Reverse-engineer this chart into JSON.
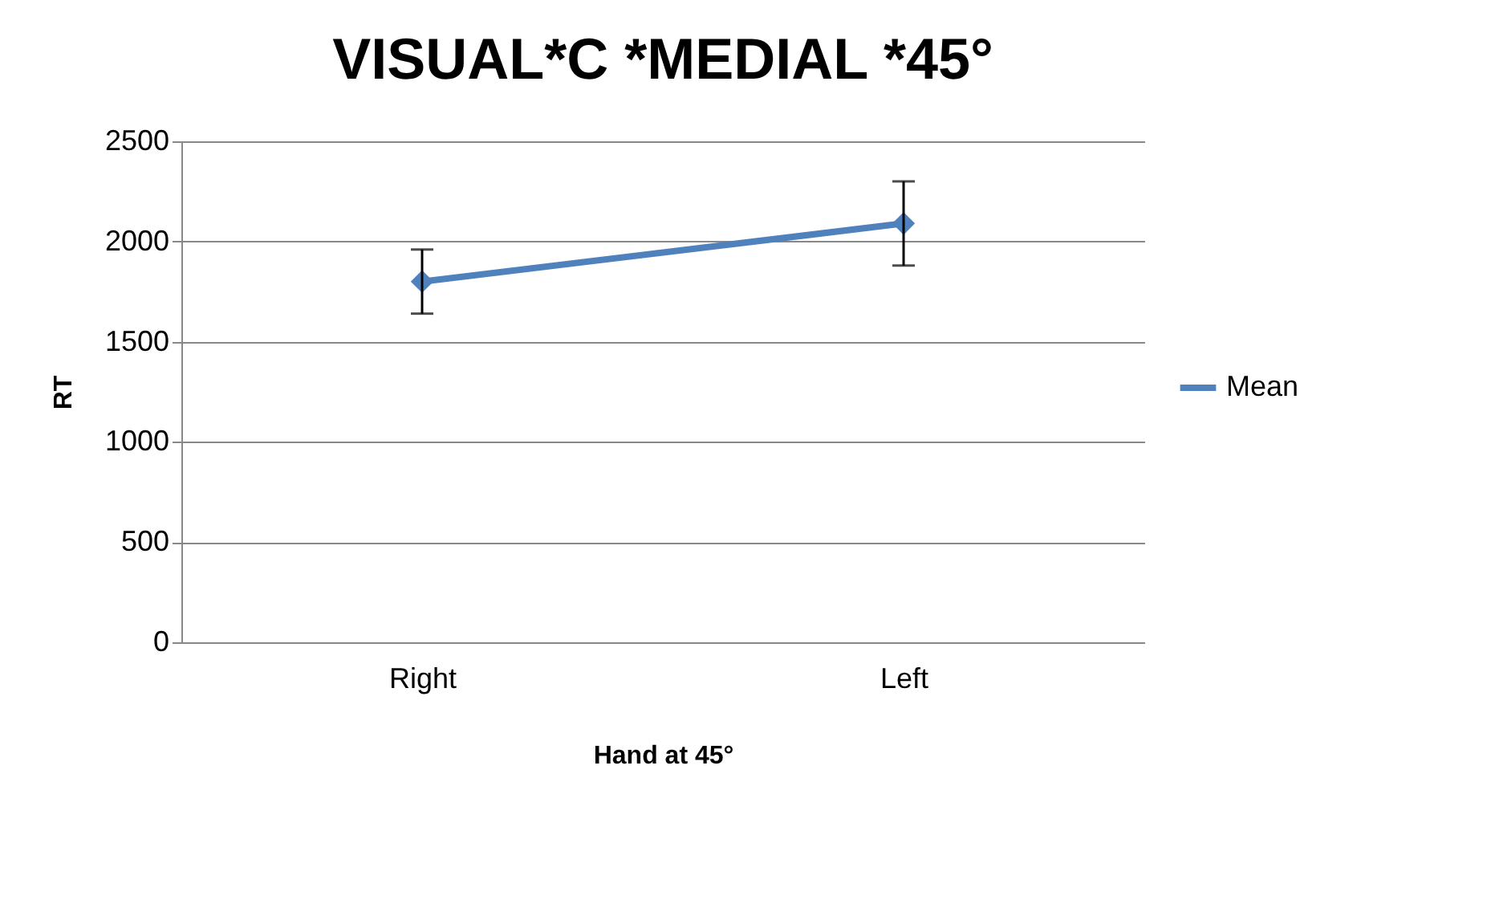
{
  "chart_data": {
    "type": "line",
    "title": "VISUAL*C *MEDIAL *45°",
    "xlabel": "Hand at 45°",
    "ylabel": "RT",
    "categories": [
      "Right",
      "Left"
    ],
    "series": [
      {
        "name": "Mean",
        "color": "#4f81bd",
        "values": [
          1800,
          2090
        ],
        "errors": [
          [
            1640,
            1960
          ],
          [
            1880,
            2300
          ]
        ]
      }
    ],
    "ylim": [
      0,
      2500
    ],
    "yticks": [
      0,
      500,
      1000,
      1500,
      2000,
      2500
    ],
    "grid": "y",
    "legend": "right",
    "marker": "diamond",
    "line_style": "solid"
  }
}
